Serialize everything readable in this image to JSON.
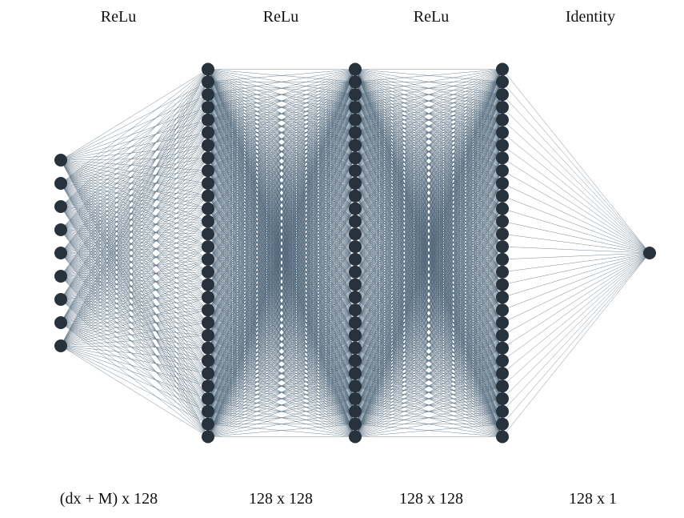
{
  "diagram": {
    "type": "fully-connected-neural-network",
    "layers": [
      {
        "nodes": 9
      },
      {
        "nodes": 30
      },
      {
        "nodes": 30
      },
      {
        "nodes": 30
      },
      {
        "nodes": 1
      }
    ],
    "activations": [
      "ReLu",
      "ReLu",
      "ReLu",
      "Identity"
    ],
    "weight_shapes": [
      "(dx + M) x 128",
      "128 x 128",
      "128 x 128",
      "128 x 1"
    ],
    "colors": {
      "node": "#27323d",
      "edge": "#4a6275",
      "background": "#ffffff"
    }
  }
}
